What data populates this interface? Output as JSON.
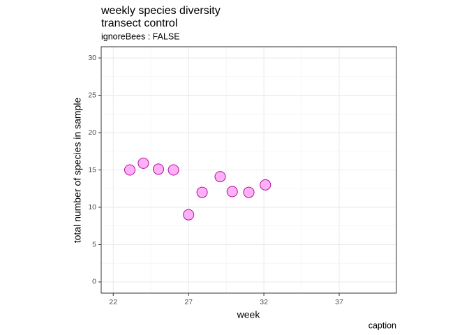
{
  "chart_data": {
    "type": "scatter",
    "title": [
      "weekly species diversity",
      "transect control"
    ],
    "subtitle": "ignoreBees : FALSE",
    "x_label": "week",
    "y_label": "total number of species in sample",
    "caption": "caption",
    "x": [
      23.1,
      24.0,
      25.0,
      26.0,
      27.0,
      27.9,
      29.1,
      29.9,
      31.0,
      32.1
    ],
    "values": [
      15,
      15.9,
      15.1,
      15,
      9,
      12,
      14.1,
      12.1,
      12,
      13
    ],
    "color": "#ffb0f8",
    "edge_color": "#b0109a",
    "xlim": [
      21.2,
      40.8
    ],
    "xticks": [
      22,
      27,
      32,
      37
    ],
    "ylim": [
      -1.5,
      31.5
    ],
    "yticks": [
      0,
      5,
      10,
      15,
      20,
      25,
      30
    ],
    "grid": true
  }
}
